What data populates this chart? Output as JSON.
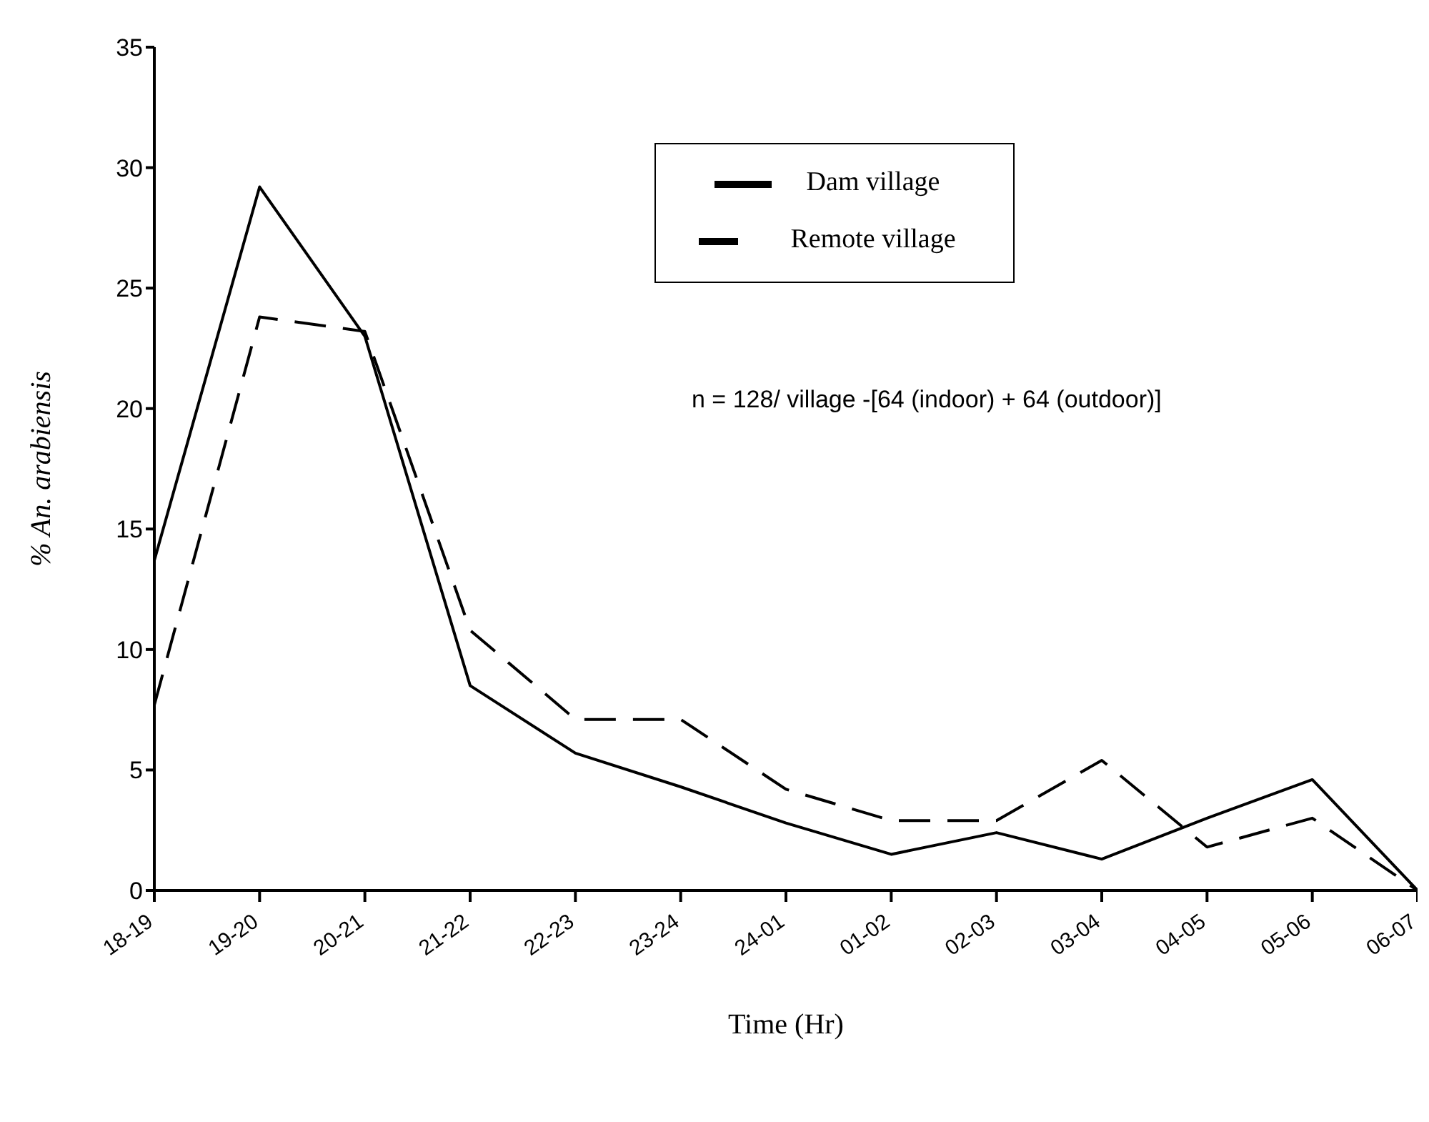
{
  "chart_data": {
    "type": "line",
    "xlabel": "Time (Hr)",
    "ylabel": "% An. arabiensis",
    "categories": [
      "18-19",
      "19-20",
      "20-21",
      "21-22",
      "22-23",
      "23-24",
      "24-01",
      "01-02",
      "02-03",
      "03-04",
      "04-05",
      "05-06",
      "06-07"
    ],
    "series": [
      {
        "name": "Dam village",
        "color": "#000000",
        "line_style": "solid",
        "values": [
          13.7,
          29.2,
          23.0,
          8.5,
          5.7,
          4.3,
          2.8,
          1.5,
          2.4,
          1.3,
          3.0,
          4.6,
          0
        ]
      },
      {
        "name": "Remote village",
        "color": "#000000",
        "line_style": "dashed",
        "values": [
          7.7,
          23.8,
          23.2,
          10.8,
          7.1,
          7.1,
          4.2,
          2.9,
          2.9,
          5.4,
          1.8,
          3.0,
          0
        ]
      }
    ],
    "ylim": [
      0,
      35
    ],
    "yticks": [
      0,
      5,
      10,
      15,
      20,
      25,
      30,
      35
    ],
    "grid": false,
    "legend": "top right",
    "marker": "none",
    "annotations": [
      "n = 128/ village -[64 (indoor) + 64 (outdoor)]"
    ]
  }
}
